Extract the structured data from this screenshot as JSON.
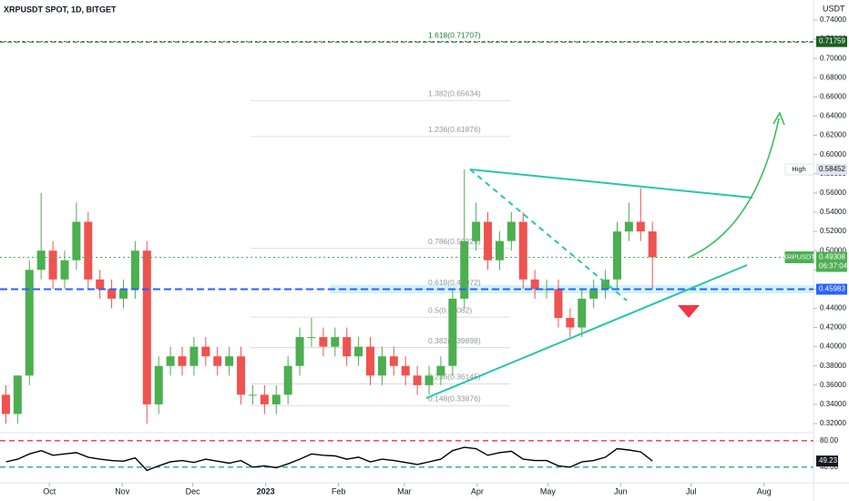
{
  "chart_data": {
    "type": "candlestick",
    "title": "XRPUSDT SPOT, 1D, BITGET",
    "currency": "USDT",
    "up_color": "#4caf50",
    "down_color": "#ef5350",
    "x": [
      2.5,
      7.5,
      12.5,
      17.5,
      22.5,
      27.5,
      32.5,
      37.5,
      42.5,
      47.5,
      52.5,
      57.5,
      62.5,
      67.5,
      72.5,
      77.5,
      82.5,
      87.5,
      92.5,
      97.5,
      102.5,
      107.5,
      112.5,
      117.5,
      122.5,
      127.5,
      132.5,
      137.5,
      142.5,
      147.5,
      152.5,
      157.5,
      162.5,
      167.5,
      172.5,
      177.5,
      182.5,
      187.5,
      192.5,
      197.5,
      202.5,
      207.5,
      212.5,
      217.5,
      222.5,
      227.5,
      232.5,
      237.5,
      242.5,
      247.5,
      252.5,
      257.5,
      262.5,
      267.5,
      272.5,
      277.5
    ],
    "open": [
      0.35,
      0.33,
      0.37,
      0.48,
      0.5,
      0.47,
      0.49,
      0.53,
      0.47,
      0.46,
      0.45,
      0.46,
      0.5,
      0.34,
      0.38,
      0.39,
      0.38,
      0.4,
      0.39,
      0.38,
      0.39,
      0.35,
      0.35,
      0.34,
      0.35,
      0.38,
      0.41,
      0.41,
      0.4,
      0.41,
      0.39,
      0.4,
      0.37,
      0.39,
      0.38,
      0.37,
      0.36,
      0.37,
      0.38,
      0.45,
      0.51,
      0.53,
      0.49,
      0.51,
      0.53,
      0.47,
      0.46,
      0.46,
      0.43,
      0.42,
      0.45,
      0.46,
      0.47,
      0.52,
      0.53,
      0.52
    ],
    "high": [
      0.36,
      0.37,
      0.49,
      0.56,
      0.51,
      0.5,
      0.55,
      0.54,
      0.48,
      0.47,
      0.47,
      0.51,
      0.51,
      0.39,
      0.4,
      0.4,
      0.41,
      0.41,
      0.4,
      0.4,
      0.4,
      0.36,
      0.36,
      0.36,
      0.39,
      0.42,
      0.43,
      0.42,
      0.42,
      0.42,
      0.41,
      0.41,
      0.4,
      0.4,
      0.39,
      0.38,
      0.38,
      0.39,
      0.46,
      0.58452,
      0.55,
      0.54,
      0.52,
      0.54,
      0.54,
      0.48,
      0.47,
      0.47,
      0.44,
      0.46,
      0.47,
      0.48,
      0.53,
      0.55,
      0.565,
      0.53
    ],
    "low": [
      0.32,
      0.32,
      0.36,
      0.47,
      0.46,
      0.46,
      0.48,
      0.46,
      0.45,
      0.44,
      0.44,
      0.45,
      0.32,
      0.33,
      0.37,
      0.37,
      0.37,
      0.38,
      0.37,
      0.37,
      0.34,
      0.34,
      0.33,
      0.33,
      0.34,
      0.37,
      0.4,
      0.39,
      0.39,
      0.38,
      0.38,
      0.36,
      0.36,
      0.37,
      0.36,
      0.35,
      0.35,
      0.36,
      0.37,
      0.44,
      0.5,
      0.48,
      0.48,
      0.5,
      0.46,
      0.45,
      0.45,
      0.42,
      0.41,
      0.41,
      0.44,
      0.45,
      0.46,
      0.51,
      0.51,
      0.46
    ],
    "close": [
      0.33,
      0.37,
      0.48,
      0.5,
      0.47,
      0.49,
      0.53,
      0.47,
      0.46,
      0.45,
      0.46,
      0.5,
      0.34,
      0.38,
      0.39,
      0.38,
      0.4,
      0.39,
      0.38,
      0.39,
      0.35,
      0.35,
      0.34,
      0.35,
      0.38,
      0.41,
      0.41,
      0.4,
      0.41,
      0.39,
      0.4,
      0.37,
      0.39,
      0.38,
      0.37,
      0.36,
      0.37,
      0.38,
      0.45,
      0.51,
      0.53,
      0.49,
      0.51,
      0.53,
      0.47,
      0.46,
      0.46,
      0.43,
      0.42,
      0.45,
      0.46,
      0.47,
      0.52,
      0.53,
      0.52,
      0.49308
    ],
    "xlim": [
      0,
      346
    ],
    "ylim": [
      0.31,
      0.76
    ],
    "xticks": [
      {
        "value": 21,
        "label": "Oct"
      },
      {
        "value": 52,
        "label": "Nov"
      },
      {
        "value": 82,
        "label": "Dec"
      },
      {
        "value": 113,
        "label": "2023"
      },
      {
        "value": 144,
        "label": "Feb"
      },
      {
        "value": 172,
        "label": "Mar"
      },
      {
        "value": 203,
        "label": "Apr"
      },
      {
        "value": 233,
        "label": "May"
      },
      {
        "value": 264,
        "label": "Jun"
      },
      {
        "value": 294,
        "label": "Jul"
      },
      {
        "value": 325,
        "label": "Aug"
      }
    ],
    "yticks": [
      {
        "value": 0.32,
        "label": "0.32000"
      },
      {
        "value": 0.34,
        "label": "0.34000"
      },
      {
        "value": 0.36,
        "label": "0.36000"
      },
      {
        "value": 0.38,
        "label": "0.38000"
      },
      {
        "value": 0.4,
        "label": "0.40000"
      },
      {
        "value": 0.42,
        "label": "0.42000"
      },
      {
        "value": 0.44,
        "label": "0.44000"
      },
      {
        "value": 0.46,
        "label": "0.46000"
      },
      {
        "value": 0.48,
        "label": "0.48000"
      },
      {
        "value": 0.5,
        "label": "0.50000"
      },
      {
        "value": 0.52,
        "label": "0.52000"
      },
      {
        "value": 0.54,
        "label": "0.54000"
      },
      {
        "value": 0.56,
        "label": "0.56000"
      },
      {
        "value": 0.58,
        "label": "0.58000"
      },
      {
        "value": 0.6,
        "label": "0.60000"
      },
      {
        "value": 0.62,
        "label": "0.62000"
      },
      {
        "value": 0.64,
        "label": "0.64000"
      },
      {
        "value": 0.66,
        "label": "0.66000"
      },
      {
        "value": 0.68,
        "label": "0.68000"
      },
      {
        "value": 0.7,
        "label": "0.70000"
      },
      {
        "value": 0.72,
        "label": "0.72000"
      },
      {
        "value": 0.74,
        "label": "0.74000"
      }
    ],
    "fib_levels": [
      {
        "label": "1.618(0.71707)",
        "value": 0.71707
      },
      {
        "label": "1.382(0.65634)",
        "value": 0.65634
      },
      {
        "label": "1.236(0.61876)",
        "value": 0.61876
      },
      {
        "label": "0.786(0.50226)",
        "value": 0.50226
      },
      {
        "label": "0.618(0.45972)",
        "value": 0.45972
      },
      {
        "label": "0.5(0.43082)",
        "value": 0.43082
      },
      {
        "label": "0.382(0.39898)",
        "value": 0.39898
      },
      {
        "label": "0.236(0.36145)",
        "value": 0.36145
      },
      {
        "label": "0.148(0.33876)",
        "value": 0.33876
      }
    ],
    "price_tags": [
      {
        "value": 0.71759,
        "color": "#1b5e20"
      },
      {
        "name": "High",
        "value": 0.58452,
        "color": "#e0e3eb"
      },
      {
        "name": "XRPUSDT",
        "value": 0.49308,
        "color": "#4caf50",
        "countdown": "06:37:04"
      },
      {
        "value": 0.45983,
        "color": "#2962ff"
      }
    ],
    "rsi": {
      "values": [
        48,
        52,
        60,
        65,
        58,
        60,
        62,
        55,
        52,
        50,
        49,
        54,
        35,
        42,
        48,
        50,
        47,
        52,
        49,
        46,
        50,
        40,
        42,
        39,
        45,
        52,
        60,
        58,
        57,
        52,
        55,
        48,
        52,
        50,
        47,
        44,
        48,
        52,
        65,
        70,
        68,
        58,
        62,
        64,
        52,
        50,
        50,
        42,
        40,
        48,
        50,
        55,
        68,
        66,
        63,
        49.23
      ],
      "ylim": [
        17,
        88
      ],
      "yticks": [
        {
          "value": 80,
          "label": "80.00"
        },
        {
          "value": 40,
          "label": "40.00"
        }
      ],
      "color": "#000000"
    }
  }
}
